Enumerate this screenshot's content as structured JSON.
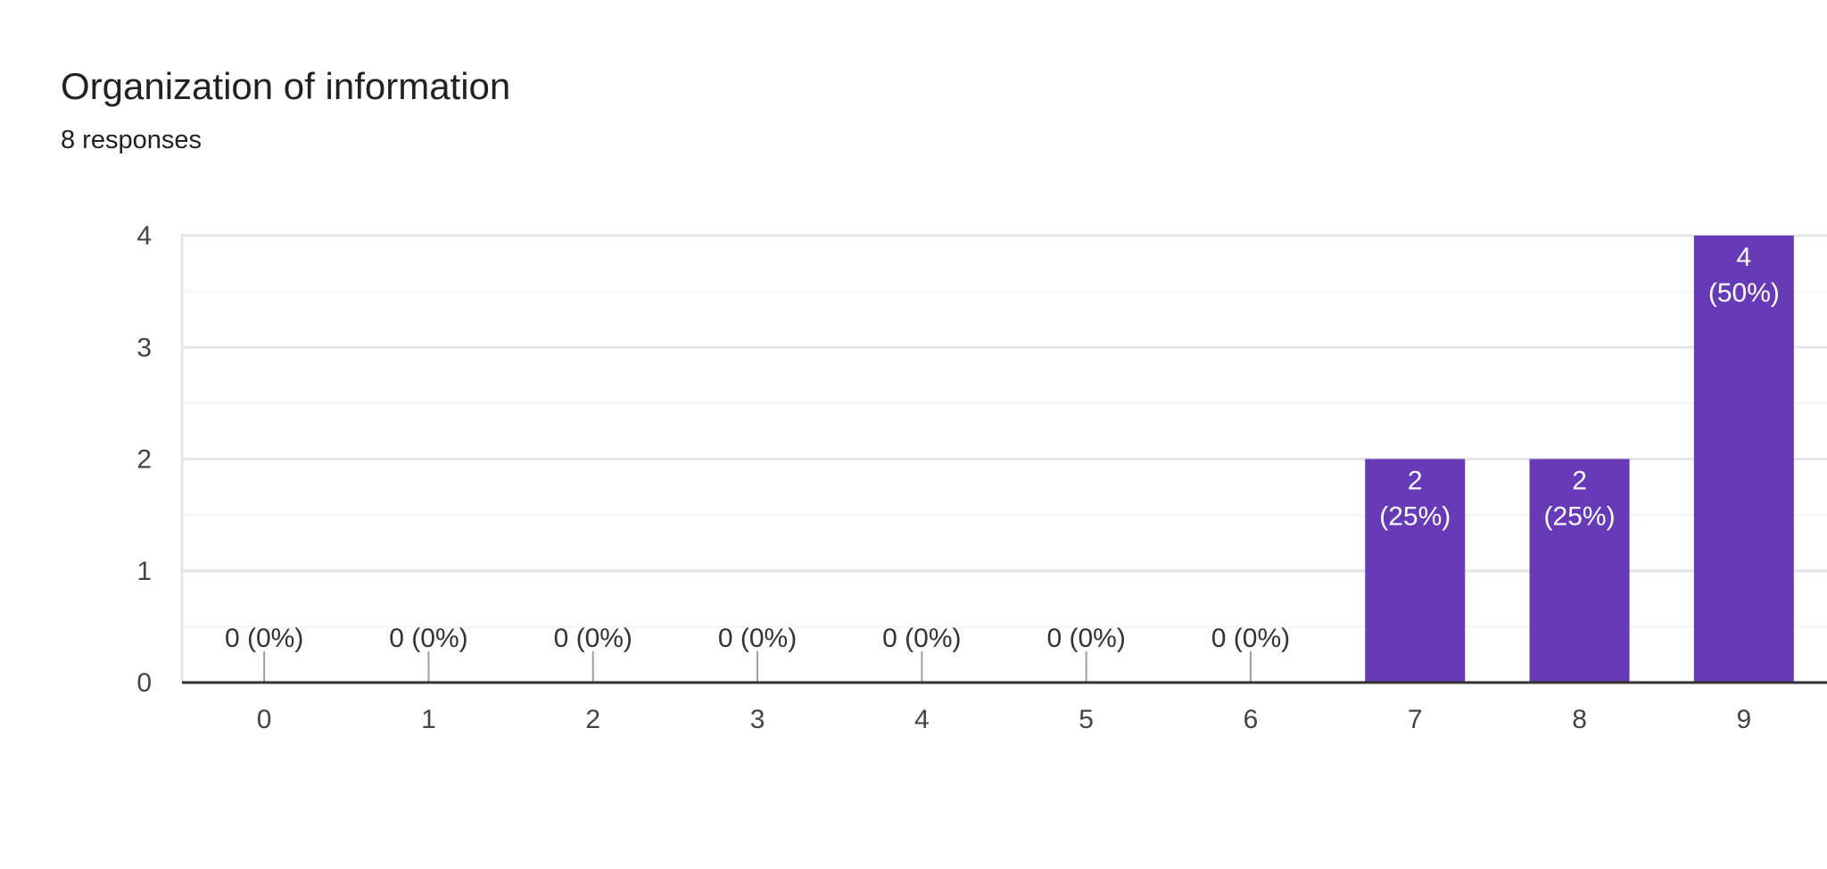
{
  "header": {
    "title": "Organization of information",
    "subtitle": "8 responses"
  },
  "colors": {
    "bar": "#673ab7",
    "grid_major": "#e6e6e6",
    "grid_minor": "#f3f3f3",
    "axis": "#333333",
    "label_dark": "#333333",
    "label_light": "#ffffff",
    "stem": "#9e9e9e"
  },
  "chart_data": {
    "type": "bar",
    "title": "Organization of information",
    "subtitle": "8 responses",
    "xlabel": "",
    "ylabel": "",
    "categories": [
      "0",
      "1",
      "2",
      "3",
      "4",
      "5",
      "6",
      "7",
      "8",
      "9"
    ],
    "values": [
      0,
      0,
      0,
      0,
      0,
      0,
      0,
      2,
      2,
      4
    ],
    "data_labels": [
      [
        "0 (0%)"
      ],
      [
        "0 (0%)"
      ],
      [
        "0 (0%)"
      ],
      [
        "0 (0%)"
      ],
      [
        "0 (0%)"
      ],
      [
        "0 (0%)"
      ],
      [
        "0 (0%)"
      ],
      [
        "2",
        "(25%)"
      ],
      [
        "2",
        "(25%)"
      ],
      [
        "4",
        "(50%)"
      ]
    ],
    "ylim": [
      0,
      4
    ],
    "yticks": [
      "0",
      "1",
      "2",
      "3",
      "4"
    ],
    "grid": true,
    "legend": "none"
  }
}
